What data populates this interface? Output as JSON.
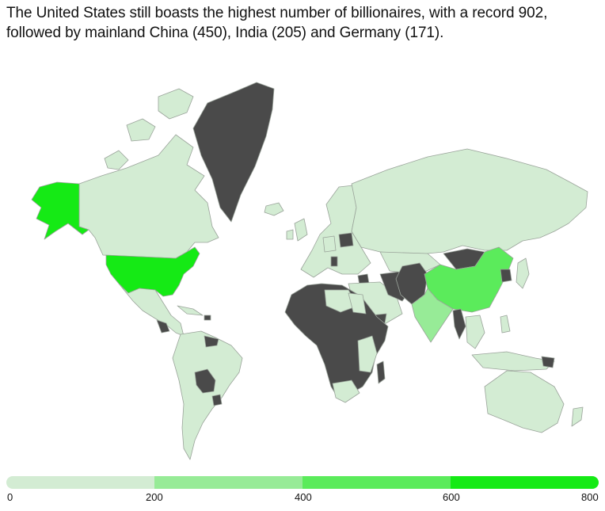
{
  "title_lines": [
    "The United States still boasts the highest number of billionaires, with a record 902,",
    "followed by mainland China (450), India (205) and Germany (171)."
  ],
  "colors": {
    "no_data": "#4a4a4a",
    "bin_0_200": "#d3ecd3",
    "bin_200_400": "#97eb97",
    "bin_400_600": "#5beb5b",
    "bin_600_800": "#15ea15"
  },
  "legend": {
    "ticks": [
      "0",
      "200",
      "400",
      "600",
      "800"
    ]
  },
  "chart_data": {
    "type": "choropleth",
    "legend_range": [
      0,
      800
    ],
    "bins": [
      [
        0,
        200
      ],
      [
        200,
        400
      ],
      [
        400,
        600
      ],
      [
        600,
        800
      ]
    ],
    "values": {
      "United States": 902,
      "China": 450,
      "India": 205,
      "Germany": 171
    }
  }
}
